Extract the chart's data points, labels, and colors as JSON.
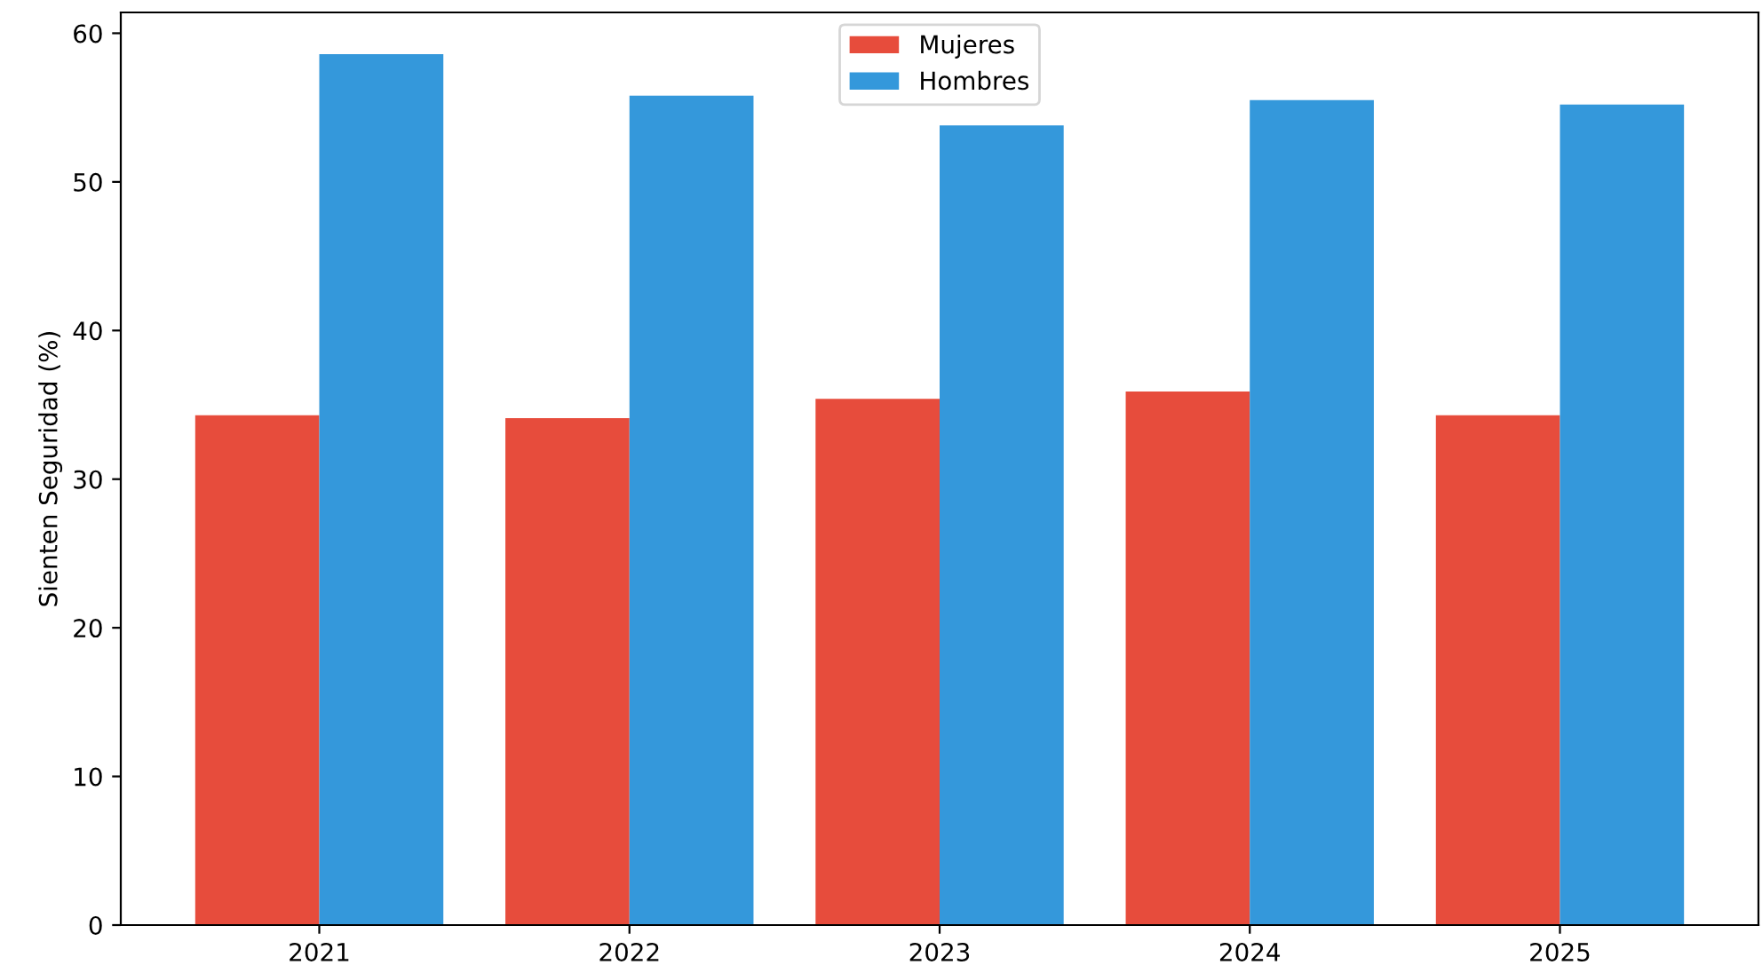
{
  "chart_data": {
    "type": "bar",
    "ylabel": "Sienten Seguridad (%)",
    "categories": [
      "2021",
      "2022",
      "2023",
      "2024",
      "2025"
    ],
    "series": [
      {
        "name": "Mujeres",
        "color": "#e74c3c",
        "values": [
          34.3,
          34.1,
          35.4,
          35.9,
          34.3
        ]
      },
      {
        "name": "Hombres",
        "color": "#3498db",
        "values": [
          58.6,
          55.8,
          53.8,
          55.5,
          55.2
        ]
      }
    ],
    "ylim": [
      0,
      61.4
    ],
    "yticks": [
      0,
      10,
      20,
      30,
      40,
      50,
      60
    ],
    "legend": "top",
    "grid": false
  }
}
